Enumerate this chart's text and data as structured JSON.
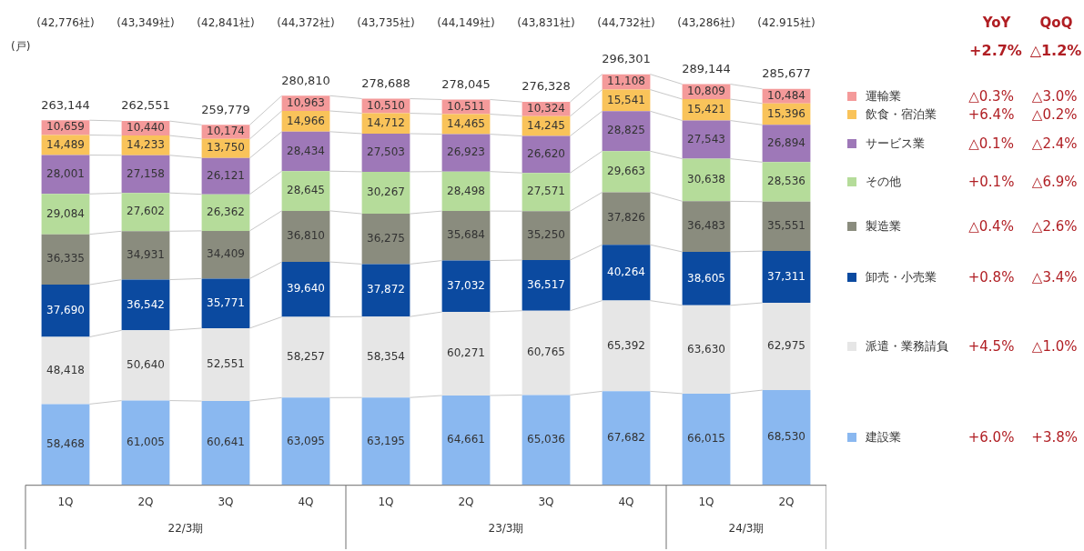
{
  "chart_data": {
    "type": "bar",
    "stacked": true,
    "legend": "right",
    "grid": false,
    "categories": [
      "1Q",
      "2Q",
      "3Q",
      "4Q",
      "1Q",
      "2Q",
      "3Q",
      "4Q",
      "1Q",
      "2Q"
    ],
    "series": [
      {
        "name": "建設業",
        "color": "#8ab8f0",
        "values": [
          58468,
          61005,
          60641,
          63095,
          63195,
          64661,
          65036,
          67682,
          66015,
          68530
        ],
        "value_labels": [
          "58,468",
          "61,005",
          "60,641",
          "63,095",
          "63,195",
          "64,661",
          "65,036",
          "67,682",
          "66,015",
          "68,530"
        ]
      },
      {
        "name": "派遣・業務請負",
        "color": "#e6e6e6",
        "values": [
          48418,
          50640,
          52551,
          58257,
          58354,
          60271,
          60765,
          65392,
          63630,
          62975
        ],
        "value_labels": [
          "48,418",
          "50,640",
          "52,551",
          "58,257",
          "58,354",
          "60,271",
          "60,765",
          "65,392",
          "63,630",
          "62,975"
        ]
      },
      {
        "name": "卸売・小売業",
        "color": "#0b4aa0",
        "values": [
          37690,
          36542,
          35771,
          39640,
          37872,
          37032,
          36517,
          40264,
          38605,
          37311
        ],
        "value_labels": [
          "37,690",
          "36,542",
          "35,771",
          "39,640",
          "37,872",
          "37,032",
          "36,517",
          "40,264",
          "38,605",
          "37,311"
        ]
      },
      {
        "name": "製造業",
        "color": "#8a8c7e",
        "values": [
          36335,
          34931,
          34409,
          36810,
          36275,
          35684,
          35250,
          37826,
          36483,
          35551
        ],
        "value_labels": [
          "36,335",
          "34,931",
          "34,409",
          "36,810",
          "36,275",
          "35,684",
          "35,250",
          "37,826",
          "36,483",
          "35,551"
        ]
      },
      {
        "name": "その他",
        "color": "#b5dc9a",
        "values": [
          29084,
          27602,
          26362,
          28645,
          30267,
          28498,
          27571,
          29663,
          30638,
          28536
        ],
        "value_labels": [
          "29,084",
          "27,602",
          "26,362",
          "28,645",
          "30,267",
          "28,498",
          "27,571",
          "29,663",
          "30,638",
          "28,536"
        ]
      },
      {
        "name": "サービス業",
        "color": "#9e78b8",
        "values": [
          28001,
          27158,
          26121,
          28434,
          27503,
          26923,
          26620,
          28825,
          27543,
          26894
        ],
        "value_labels": [
          "28,001",
          "27,158",
          "26,121",
          "28,434",
          "27,503",
          "26,923",
          "26,620",
          "28,825",
          "27,543",
          "26,894"
        ]
      },
      {
        "name": "飲食・宿泊業",
        "color": "#f9c35a",
        "values": [
          14489,
          14233,
          13750,
          14966,
          14712,
          14465,
          14245,
          15541,
          15421,
          15396
        ],
        "value_labels": [
          "14,489",
          "14,233",
          "13,750",
          "14,966",
          "14,712",
          "14,465",
          "14,245",
          "15,541",
          "15,421",
          "15,396"
        ]
      },
      {
        "name": "運輸業",
        "color": "#f49a9a",
        "values": [
          10659,
          10440,
          10174,
          10963,
          10510,
          10511,
          10324,
          11108,
          10809,
          10484
        ],
        "value_labels": [
          "10,659",
          "10,440",
          "10,174",
          "10,963",
          "10,510",
          "10,511",
          "10,324",
          "11,108",
          "10,809",
          "10,484"
        ]
      }
    ],
    "totals": [
      "263,144",
      "262,551",
      "259,779",
      "280,810",
      "278,688",
      "278,045",
      "276,328",
      "296,301",
      "289,144",
      "285,677"
    ],
    "annotations": [
      "(戸)",
      "(42,776社)",
      "(43,349社)",
      "(42,841社)",
      "(44,372社)",
      "(43,735社)",
      "(44,149社)",
      "(43,831社)",
      "(44,732社)",
      "(43,286社)",
      "(42.915社)",
      "22/3期",
      "23/3期",
      "24/3期",
      "YoY",
      "QoQ",
      "+2.7%",
      "△1.2%",
      "+6.0%",
      "+3.8%",
      "+4.5%",
      "△1.0%",
      "+0.8%",
      "△3.4%",
      "△0.4%",
      "△2.6%",
      "+0.1%",
      "△6.9%",
      "△0.1%",
      "△2.4%",
      "+6.4%",
      "△0.2%",
      "△0.3%",
      "△3.0%"
    ]
  }
}
